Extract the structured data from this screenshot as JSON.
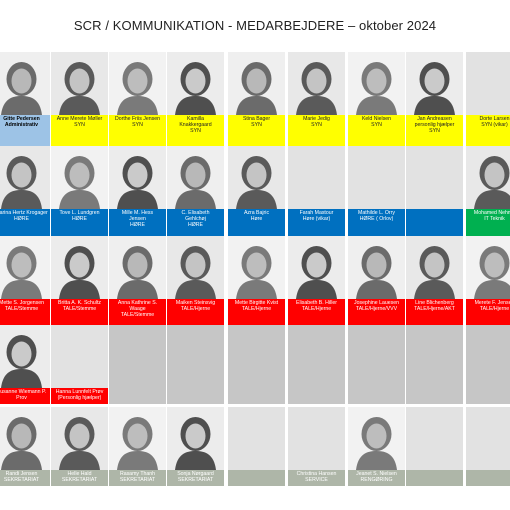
{
  "title": "SCR / KOMMUNIKATION - MEDARBEJDERE – oktober 2024",
  "colors": {
    "administrativ": "#9dc3e6",
    "syn": "#ffff00",
    "hore": "#0070c0",
    "it": "#00b050",
    "tale": "#ff0000",
    "sekretariat": "#aeb6a8",
    "empty_label": "#c6c6c6",
    "empty_photo": "#c6c6c6"
  },
  "rows": [
    [
      {
        "photo": true,
        "lines": [
          "Gitte Pedersen",
          "Administrativ"
        ],
        "group": "administrativ",
        "bold": true
      },
      {
        "photo": true,
        "lines": [
          "Anne Merete Møller",
          "SYN"
        ],
        "group": "syn"
      },
      {
        "photo": true,
        "lines": [
          "Dorthe Friis Jensen",
          "SYN"
        ],
        "group": "syn"
      },
      {
        "photo": true,
        "lines": [
          "Kamilla",
          "Knakkergaard",
          "SYN"
        ],
        "group": "syn"
      },
      {
        "photo": true,
        "lines": [
          "Stina Bager",
          "SYN"
        ],
        "group": "syn"
      },
      {
        "photo": true,
        "lines": [
          "Marie Jedig",
          "SYN"
        ],
        "group": "syn"
      },
      {
        "photo": true,
        "lines": [
          "Keld Nielsen",
          "SYN"
        ],
        "group": "syn"
      },
      {
        "photo": true,
        "lines": [
          "Jan Andreasen",
          "personlig hjælper",
          "SYN"
        ],
        "group": "syn"
      },
      {
        "photo": false,
        "lines": [
          "Dorte Larsen",
          "SYN (vikar)"
        ],
        "group": "syn"
      }
    ],
    [
      {
        "photo": true,
        "lines": [
          "Marina Hertz Krogager",
          "HØRE"
        ],
        "group": "hore"
      },
      {
        "photo": true,
        "lines": [
          "Tove L. Lundgren",
          "HØRE"
        ],
        "group": "hore"
      },
      {
        "photo": true,
        "lines": [
          "Mille M. Hess",
          "Jensen",
          "HØRE"
        ],
        "group": "hore"
      },
      {
        "photo": true,
        "lines": [
          "C. Elisabeth",
          "Gehlchøj",
          "HØRE"
        ],
        "group": "hore"
      },
      {
        "photo": true,
        "lines": [
          "Azra Bajric",
          "Høre"
        ],
        "group": "hore"
      },
      {
        "photo": false,
        "lines": [
          "Farah Mastour",
          "Høre (vikar)"
        ],
        "group": "hore"
      },
      {
        "photo": false,
        "lines": [
          "Mathilde L. Orry",
          "HØRE ( Orlov)"
        ],
        "group": "hore"
      },
      {
        "photo": false,
        "lines": [],
        "group": "hore"
      },
      {
        "photo": true,
        "lines": [
          "Mohamed Nehme",
          "IT Teknik"
        ],
        "group": "it"
      }
    ],
    [
      {
        "photo": true,
        "lines": [
          "Mette S. Jorgensen",
          "TALE/Stemme"
        ],
        "group": "tale"
      },
      {
        "photo": true,
        "lines": [
          "Britta A. K. Schultz",
          "TALE/Stemme"
        ],
        "group": "tale"
      },
      {
        "photo": true,
        "lines": [
          "Anna Kathrine S.",
          "Waage",
          "TALE/Stemme"
        ],
        "group": "tale"
      },
      {
        "photo": true,
        "lines": [
          "Maiken Steinsvig",
          "TALE/Hjerne"
        ],
        "group": "tale"
      },
      {
        "photo": true,
        "lines": [
          "Mette Birgitte Kvist",
          "TALE/Hjerne"
        ],
        "group": "tale"
      },
      {
        "photo": true,
        "lines": [
          "Elisabeth B. Hiller",
          "TALE/Hjerne"
        ],
        "group": "tale"
      },
      {
        "photo": true,
        "lines": [
          "Josephine Lauesen",
          "TALE/Hjerne/VVV"
        ],
        "group": "tale"
      },
      {
        "photo": true,
        "lines": [
          "Line Blichenberg",
          "TALE/Hjerne/AKT"
        ],
        "group": "tale"
      },
      {
        "photo": true,
        "lines": [
          "Merete F. Jensen",
          "TALE/Hjerne"
        ],
        "group": "tale"
      }
    ],
    [
      {
        "photo": true,
        "lines": [
          "Susanne Wiemann P.",
          "Prov"
        ],
        "group": "tale"
      },
      {
        "photo": false,
        "lines": [
          "Hanna Lunnfelt Prøv",
          "(Personlig hjælper)"
        ],
        "group": "tale"
      },
      {
        "photo": false,
        "lines": [],
        "group": "empty"
      },
      {
        "photo": false,
        "lines": [],
        "group": "empty"
      },
      {
        "photo": false,
        "lines": [],
        "group": "empty"
      },
      {
        "photo": false,
        "lines": [],
        "group": "empty"
      },
      {
        "photo": false,
        "lines": [],
        "group": "empty"
      },
      {
        "photo": false,
        "lines": [],
        "group": "empty"
      },
      {
        "photo": false,
        "lines": [],
        "group": "empty"
      }
    ],
    [
      {
        "photo": true,
        "lines": [
          "Randi Jensen",
          "SEKRETARIAT"
        ],
        "group": "sekretariat"
      },
      {
        "photo": true,
        "lines": [
          "Helle Hald",
          "SEKRETARIAT"
        ],
        "group": "sekretariat"
      },
      {
        "photo": true,
        "lines": [
          "Rasamy Thanh",
          "SEKRETARIAT"
        ],
        "group": "sekretariat"
      },
      {
        "photo": true,
        "lines": [
          "Sonja Nørgaard",
          "SEKRETARIAT"
        ],
        "group": "sekretariat"
      },
      {
        "photo": false,
        "lines": [],
        "group": "sekretariat"
      },
      {
        "photo": false,
        "lines": [
          "Christina Hansen",
          "SERVICE"
        ],
        "group": "sekretariat"
      },
      {
        "photo": true,
        "lines": [
          "Jeanet S. Nielsen",
          "RENGØRING"
        ],
        "group": "sekretariat"
      },
      {
        "photo": false,
        "lines": [],
        "group": "sekretariat"
      },
      {
        "photo": false,
        "lines": [],
        "group": "sekretariat"
      }
    ]
  ]
}
